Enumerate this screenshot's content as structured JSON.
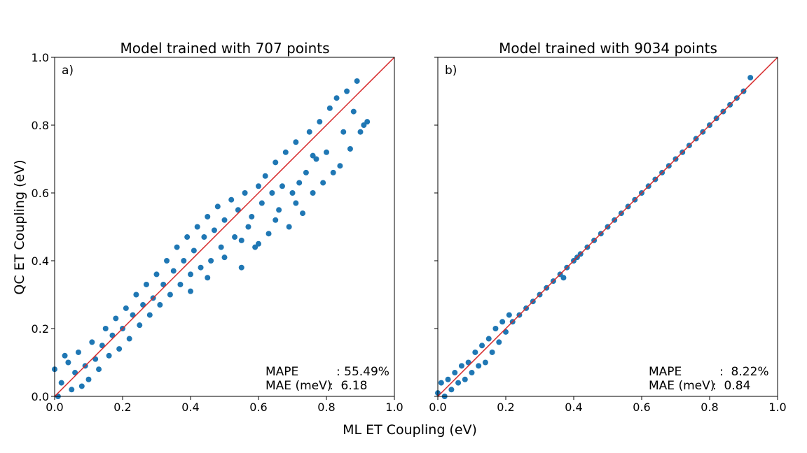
{
  "figure": {
    "xlabel": "ML ET Coupling (eV)",
    "ylabel": "QC ET Coupling (eV)"
  },
  "colors": {
    "points": "#1f77b4",
    "diagonal": "#d62728"
  },
  "chart_data": [
    {
      "type": "scatter",
      "panel_label": "a)",
      "title": "Model trained with 707 points",
      "xlabel": "ML ET Coupling (eV)",
      "ylabel": "QC ET Coupling (eV)",
      "xlim": [
        0.0,
        1.0
      ],
      "ylim": [
        0.0,
        1.0
      ],
      "xticks": [
        "0.0",
        "0.2",
        "0.4",
        "0.6",
        "0.8",
        "1.0"
      ],
      "yticks": [
        "0.0",
        "0.2",
        "0.4",
        "0.6",
        "0.8",
        "1.0"
      ],
      "reference_line": "y = x",
      "metrics": [
        {
          "label": "MAPE         ",
          "value": ": 55.49%"
        },
        {
          "label": "MAE (meV)",
          "value": ":  6.18"
        }
      ],
      "points": [
        [
          0.01,
          0.0
        ],
        [
          0.02,
          0.04
        ],
        [
          0.0,
          0.08
        ],
        [
          0.03,
          0.12
        ],
        [
          0.05,
          0.02
        ],
        [
          0.06,
          0.07
        ],
        [
          0.04,
          0.1
        ],
        [
          0.08,
          0.03
        ],
        [
          0.09,
          0.09
        ],
        [
          0.07,
          0.13
        ],
        [
          0.1,
          0.05
        ],
        [
          0.12,
          0.11
        ],
        [
          0.11,
          0.16
        ],
        [
          0.13,
          0.08
        ],
        [
          0.14,
          0.15
        ],
        [
          0.15,
          0.2
        ],
        [
          0.16,
          0.12
        ],
        [
          0.17,
          0.18
        ],
        [
          0.18,
          0.23
        ],
        [
          0.19,
          0.14
        ],
        [
          0.2,
          0.2
        ],
        [
          0.21,
          0.26
        ],
        [
          0.22,
          0.17
        ],
        [
          0.23,
          0.24
        ],
        [
          0.24,
          0.3
        ],
        [
          0.25,
          0.21
        ],
        [
          0.26,
          0.27
        ],
        [
          0.27,
          0.33
        ],
        [
          0.28,
          0.24
        ],
        [
          0.29,
          0.29
        ],
        [
          0.3,
          0.36
        ],
        [
          0.31,
          0.27
        ],
        [
          0.32,
          0.33
        ],
        [
          0.33,
          0.4
        ],
        [
          0.34,
          0.3
        ],
        [
          0.35,
          0.37
        ],
        [
          0.36,
          0.44
        ],
        [
          0.37,
          0.33
        ],
        [
          0.38,
          0.4
        ],
        [
          0.39,
          0.47
        ],
        [
          0.4,
          0.36
        ],
        [
          0.41,
          0.43
        ],
        [
          0.42,
          0.5
        ],
        [
          0.43,
          0.38
        ],
        [
          0.44,
          0.47
        ],
        [
          0.45,
          0.53
        ],
        [
          0.46,
          0.4
        ],
        [
          0.47,
          0.49
        ],
        [
          0.48,
          0.56
        ],
        [
          0.49,
          0.44
        ],
        [
          0.5,
          0.52
        ],
        [
          0.52,
          0.58
        ],
        [
          0.53,
          0.47
        ],
        [
          0.54,
          0.55
        ],
        [
          0.55,
          0.46
        ],
        [
          0.56,
          0.6
        ],
        [
          0.57,
          0.5
        ],
        [
          0.58,
          0.53
        ],
        [
          0.59,
          0.44
        ],
        [
          0.6,
          0.62
        ],
        [
          0.61,
          0.57
        ],
        [
          0.62,
          0.65
        ],
        [
          0.63,
          0.48
        ],
        [
          0.64,
          0.6
        ],
        [
          0.65,
          0.69
        ],
        [
          0.66,
          0.55
        ],
        [
          0.67,
          0.62
        ],
        [
          0.68,
          0.72
        ],
        [
          0.69,
          0.5
        ],
        [
          0.7,
          0.6
        ],
        [
          0.71,
          0.75
        ],
        [
          0.72,
          0.63
        ],
        [
          0.73,
          0.54
        ],
        [
          0.74,
          0.66
        ],
        [
          0.75,
          0.78
        ],
        [
          0.76,
          0.6
        ],
        [
          0.77,
          0.7
        ],
        [
          0.78,
          0.81
        ],
        [
          0.79,
          0.63
        ],
        [
          0.8,
          0.72
        ],
        [
          0.81,
          0.85
        ],
        [
          0.82,
          0.66
        ],
        [
          0.83,
          0.88
        ],
        [
          0.84,
          0.68
        ],
        [
          0.85,
          0.78
        ],
        [
          0.86,
          0.9
        ],
        [
          0.87,
          0.73
        ],
        [
          0.88,
          0.84
        ],
        [
          0.89,
          0.93
        ],
        [
          0.9,
          0.78
        ],
        [
          0.91,
          0.8
        ],
        [
          0.92,
          0.81
        ],
        [
          0.71,
          0.57
        ],
        [
          0.76,
          0.71
        ],
        [
          0.65,
          0.52
        ],
        [
          0.6,
          0.45
        ],
        [
          0.55,
          0.38
        ],
        [
          0.5,
          0.41
        ],
        [
          0.45,
          0.35
        ],
        [
          0.4,
          0.31
        ]
      ]
    },
    {
      "type": "scatter",
      "panel_label": "b)",
      "title": "Model trained with 9034 points",
      "xlabel": "ML ET Coupling (eV)",
      "ylabel": "QC ET Coupling (eV)",
      "xlim": [
        0.0,
        1.0
      ],
      "ylim": [
        0.0,
        1.0
      ],
      "xticks": [
        "0.0",
        "0.2",
        "0.4",
        "0.6",
        "0.8",
        "1.0"
      ],
      "yticks": [
        "",
        "",
        "",
        "",
        "",
        ""
      ],
      "reference_line": "y = x",
      "metrics": [
        {
          "label": "MAPE         ",
          "value": ":  8.22%"
        },
        {
          "label": "MAE (meV)",
          "value": ":  0.84"
        }
      ],
      "points": [
        [
          0.0,
          0.01
        ],
        [
          0.01,
          0.04
        ],
        [
          0.02,
          0.0
        ],
        [
          0.03,
          0.05
        ],
        [
          0.04,
          0.02
        ],
        [
          0.05,
          0.07
        ],
        [
          0.06,
          0.04
        ],
        [
          0.07,
          0.09
        ],
        [
          0.08,
          0.05
        ],
        [
          0.09,
          0.1
        ],
        [
          0.1,
          0.07
        ],
        [
          0.11,
          0.13
        ],
        [
          0.12,
          0.09
        ],
        [
          0.13,
          0.15
        ],
        [
          0.14,
          0.1
        ],
        [
          0.15,
          0.17
        ],
        [
          0.16,
          0.13
        ],
        [
          0.17,
          0.2
        ],
        [
          0.18,
          0.16
        ],
        [
          0.19,
          0.22
        ],
        [
          0.2,
          0.19
        ],
        [
          0.21,
          0.24
        ],
        [
          0.22,
          0.22
        ],
        [
          0.24,
          0.24
        ],
        [
          0.26,
          0.26
        ],
        [
          0.28,
          0.28
        ],
        [
          0.3,
          0.3
        ],
        [
          0.32,
          0.32
        ],
        [
          0.34,
          0.34
        ],
        [
          0.36,
          0.36
        ],
        [
          0.38,
          0.38
        ],
        [
          0.4,
          0.4
        ],
        [
          0.42,
          0.42
        ],
        [
          0.44,
          0.44
        ],
        [
          0.46,
          0.46
        ],
        [
          0.48,
          0.48
        ],
        [
          0.5,
          0.5
        ],
        [
          0.52,
          0.52
        ],
        [
          0.54,
          0.54
        ],
        [
          0.56,
          0.56
        ],
        [
          0.58,
          0.58
        ],
        [
          0.6,
          0.6
        ],
        [
          0.62,
          0.62
        ],
        [
          0.64,
          0.64
        ],
        [
          0.66,
          0.66
        ],
        [
          0.68,
          0.68
        ],
        [
          0.7,
          0.7
        ],
        [
          0.72,
          0.72
        ],
        [
          0.74,
          0.74
        ],
        [
          0.76,
          0.76
        ],
        [
          0.78,
          0.78
        ],
        [
          0.8,
          0.8
        ],
        [
          0.82,
          0.82
        ],
        [
          0.84,
          0.84
        ],
        [
          0.86,
          0.86
        ],
        [
          0.88,
          0.88
        ],
        [
          0.9,
          0.9
        ],
        [
          0.92,
          0.94
        ],
        [
          0.37,
          0.35
        ],
        [
          0.41,
          0.41
        ]
      ]
    }
  ]
}
